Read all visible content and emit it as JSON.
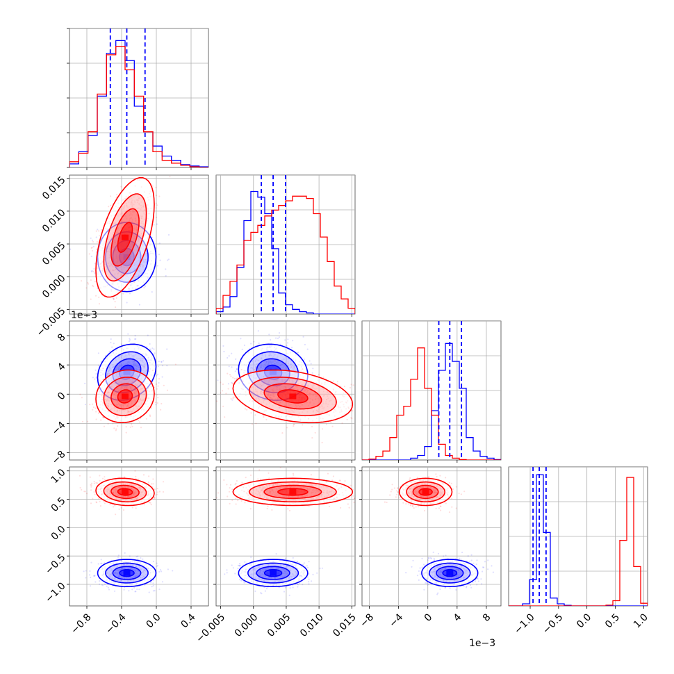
{
  "chart_data": {
    "type": "corner",
    "grid": true,
    "colors": {
      "blue": "#0000ff",
      "red": "#ff0000"
    },
    "params": [
      {
        "range": [
          -1.0,
          0.6
        ],
        "ticks": [
          -0.8,
          -0.4,
          0.0,
          0.4
        ],
        "tick_labels": [
          "−0.8",
          "−0.4",
          "0.0",
          "0.4"
        ],
        "offset": ""
      },
      {
        "range": [
          -0.0057,
          0.0155
        ],
        "ticks": [
          -0.005,
          0.0,
          0.005,
          0.01,
          0.015
        ],
        "tick_labels": [
          "−0.005",
          "0.000",
          "0.005",
          "0.010",
          "0.015"
        ],
        "offset": ""
      },
      {
        "range": [
          -9.0,
          10.0
        ],
        "ticks": [
          -8,
          -4,
          0,
          4,
          8
        ],
        "tick_labels": [
          "−8",
          "−4",
          "0",
          "4",
          "8"
        ],
        "offset": "1e−3"
      },
      {
        "range": [
          -1.38,
          1.07
        ],
        "ticks": [
          -1.0,
          -0.5,
          0.0,
          0.5,
          1.0
        ],
        "tick_labels": [
          "−1.0",
          "−0.5",
          "0.0",
          "0.5",
          "1.0"
        ],
        "offset": ""
      }
    ],
    "series": [
      {
        "color": "blue",
        "means": [
          -0.34,
          0.003,
          3.0,
          -0.8
        ],
        "sds": [
          0.14,
          0.0022,
          1.6,
          0.1
        ],
        "corr": [
          [
            1,
            0.0,
            0.2,
            0.0
          ],
          [
            0.0,
            1,
            -0.1,
            0.0
          ],
          [
            0.2,
            -0.1,
            1,
            0.0
          ],
          [
            0.0,
            0.0,
            0.0,
            1
          ]
        ],
        "quantile_lines": [
          [
            -0.53,
            -0.34,
            -0.13
          ],
          [
            0.0012,
            0.003,
            0.0049
          ],
          [
            1.5,
            3.0,
            4.6
          ],
          [
            -0.95,
            -0.84,
            -0.72
          ]
        ]
      },
      {
        "color": "red",
        "means": [
          -0.36,
          0.006,
          -0.3,
          0.63
        ],
        "sds": [
          0.14,
          0.0038,
          1.5,
          0.1
        ],
        "corr": [
          [
            1,
            0.55,
            0.1,
            -0.1
          ],
          [
            0.55,
            1,
            -0.3,
            0.0
          ],
          [
            0.1,
            -0.3,
            1,
            0.0
          ],
          [
            -0.1,
            0.0,
            0.0,
            1
          ]
        ]
      }
    ],
    "hist_ylim": [
      [
        0,
        0.195
      ],
      [
        0,
        0.119
      ],
      [
        0,
        0.31
      ],
      [
        0,
        0.53
      ]
    ],
    "hists": [
      {
        "blue": [
          0.005,
          0.022,
          0.045,
          0.1,
          0.16,
          0.178,
          0.15,
          0.086,
          0.05,
          0.03,
          0.016,
          0.01,
          0.004,
          0.002,
          0.001
        ],
        "red": [
          0.008,
          0.02,
          0.05,
          0.103,
          0.158,
          0.17,
          0.137,
          0.1,
          0.05,
          0.022,
          0.01,
          0.006,
          0.003,
          0.001,
          0.0
        ]
      },
      {
        "blue": [
          0.002,
          0.006,
          0.015,
          0.04,
          0.08,
          0.105,
          0.1,
          0.086,
          0.056,
          0.018,
          0.008,
          0.004,
          0.002,
          0.001,
          0.0,
          0.0,
          0.0,
          0.0,
          0.0,
          0.0
        ],
        "red": [
          0.005,
          0.016,
          0.028,
          0.042,
          0.063,
          0.07,
          0.076,
          0.084,
          0.089,
          0.093,
          0.097,
          0.101,
          0.101,
          0.099,
          0.086,
          0.066,
          0.045,
          0.024,
          0.013,
          0.005
        ]
      },
      {
        "blue": [
          0.0,
          0.0,
          0.0,
          0.0,
          0.0,
          0.0,
          0.0,
          0.004,
          0.01,
          0.03,
          0.11,
          0.2,
          0.26,
          0.22,
          0.16,
          0.05,
          0.02,
          0.008,
          0.004,
          0.001
        ],
        "red": [
          0.0,
          0.002,
          0.008,
          0.02,
          0.05,
          0.1,
          0.12,
          0.18,
          0.25,
          0.16,
          0.1,
          0.035,
          0.01,
          0.004,
          0.001,
          0.0,
          0.0,
          0.0,
          0.0,
          0.0
        ]
      },
      {
        "blue": [
          0.0,
          0.0,
          0.008,
          0.1,
          0.5,
          0.28,
          0.03,
          0.008,
          0.002,
          0.0,
          0.0,
          0.0,
          0.0,
          0.0,
          0.0,
          0.0,
          0.0,
          0.0,
          0.0,
          0.0
        ],
        "red": [
          0.0,
          0.0,
          0.0,
          0.0,
          0.0,
          0.0,
          0.0,
          0.0,
          0.0,
          0.0,
          0.0,
          0.0,
          0.0,
          0.0,
          0.003,
          0.02,
          0.25,
          0.49,
          0.15,
          0.01
        ]
      }
    ]
  }
}
